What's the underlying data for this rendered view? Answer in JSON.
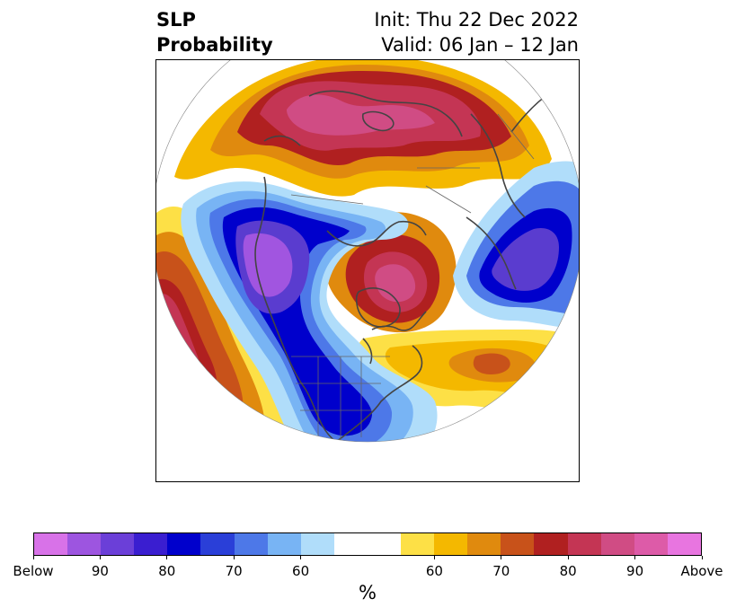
{
  "title": {
    "left_line1": "SLP",
    "left_line2": "Probability",
    "right_line1": "Init: Thu 22 Dec 2022",
    "right_line2": "Valid: 06 Jan – 12 Jan"
  },
  "colorbar": {
    "unit": "%",
    "colors": [
      "#d872e8",
      "#9d55e0",
      "#6b3fd8",
      "#3a1ed0",
      "#0000cc",
      "#2a3fd8",
      "#4d78e8",
      "#78b4f4",
      "#b0ddfa",
      "#ffffff",
      "#ffffff",
      "#fde046",
      "#f4b800",
      "#e08a0e",
      "#c8521a",
      "#b02020",
      "#c43554",
      "#d04c84",
      "#dd5ba8",
      "#e875e0"
    ],
    "labels": [
      "Below",
      "90",
      "80",
      "70",
      "60",
      "60",
      "70",
      "80",
      "90",
      "Above"
    ]
  },
  "map": {
    "palette": {
      "below_extreme": "#a155e0",
      "below_90": "#5a3ccf",
      "below_80": "#0000cc",
      "below_70": "#2a3fd8",
      "below_65": "#4d78e8",
      "below_60": "#78b4f4",
      "below_55": "#b0ddfa",
      "above_55": "#fde046",
      "above_60": "#f4b800",
      "above_65": "#e08a0e",
      "above_70": "#c8521a",
      "above_75": "#b02020",
      "above_80": "#c43554",
      "above_90": "#d04c84",
      "land_line": "#444444"
    }
  }
}
